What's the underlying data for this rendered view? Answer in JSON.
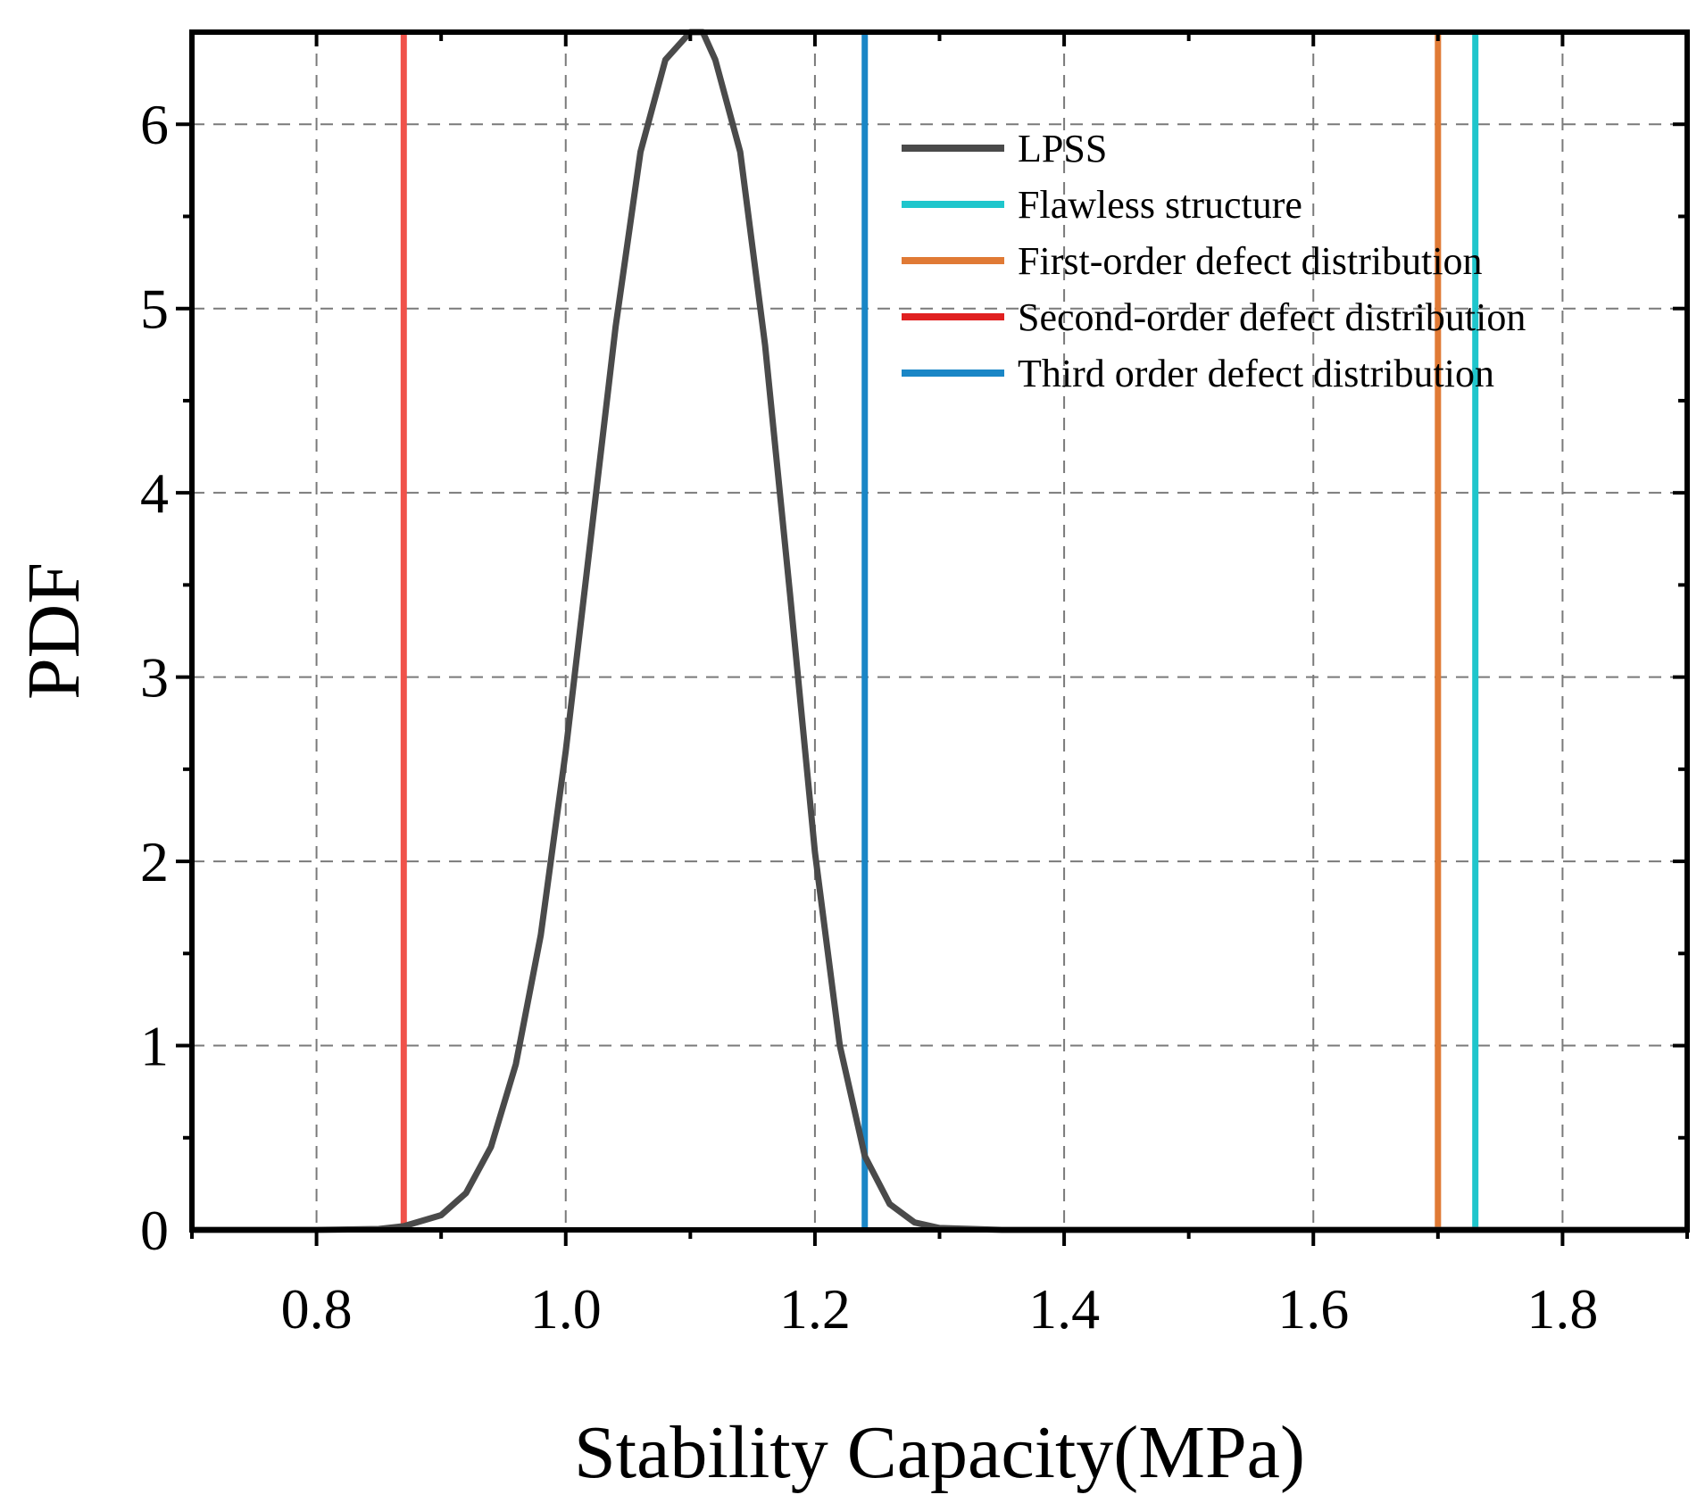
{
  "chart_data": {
    "type": "line",
    "xlabel": "Stability Capacity(MPa)",
    "ylabel": "PDF",
    "xlim": [
      0.7,
      1.9
    ],
    "ylim": [
      0,
      6.5
    ],
    "x_ticks": [
      0.8,
      1.0,
      1.2,
      1.4,
      1.6,
      1.8
    ],
    "x_tick_labels": [
      "0.8",
      "1.0",
      "1.2",
      "1.4",
      "1.6",
      "1.8"
    ],
    "y_ticks": [
      0,
      1,
      2,
      3,
      4,
      5,
      6
    ],
    "y_tick_labels": [
      "0",
      "1",
      "2",
      "3",
      "4",
      "5",
      "6"
    ],
    "grid": true,
    "legend_position": "top-right",
    "series": [
      {
        "name": "LPSS",
        "kind": "curve",
        "color": "#4a4a4a",
        "x": [
          0.7,
          0.8,
          0.85,
          0.87,
          0.9,
          0.92,
          0.94,
          0.96,
          0.98,
          1.0,
          1.02,
          1.04,
          1.06,
          1.08,
          1.1,
          1.11,
          1.12,
          1.14,
          1.16,
          1.18,
          1.2,
          1.22,
          1.24,
          1.26,
          1.28,
          1.3,
          1.35,
          1.9
        ],
        "y": [
          0.0,
          0.0,
          0.005,
          0.02,
          0.08,
          0.2,
          0.45,
          0.9,
          1.6,
          2.6,
          3.75,
          4.9,
          5.85,
          6.35,
          6.5,
          6.5,
          6.35,
          5.85,
          4.8,
          3.45,
          2.05,
          1.0,
          0.4,
          0.14,
          0.04,
          0.01,
          0.0,
          0.0
        ]
      },
      {
        "name": "Flawless structure",
        "kind": "vline",
        "color": "#1fc6cc",
        "x_value": 1.73
      },
      {
        "name": "First-order defect distribution",
        "kind": "vline",
        "color": "#e07a35",
        "x_value": 1.7
      },
      {
        "name": "Second-order defect distribution",
        "kind": "vline",
        "color": "#f0524a",
        "legend_color": "#e02020",
        "x_value": 0.87
      },
      {
        "name": "Third order defect distribution",
        "kind": "vline",
        "color": "#1a86c6",
        "x_value": 1.24
      }
    ]
  }
}
